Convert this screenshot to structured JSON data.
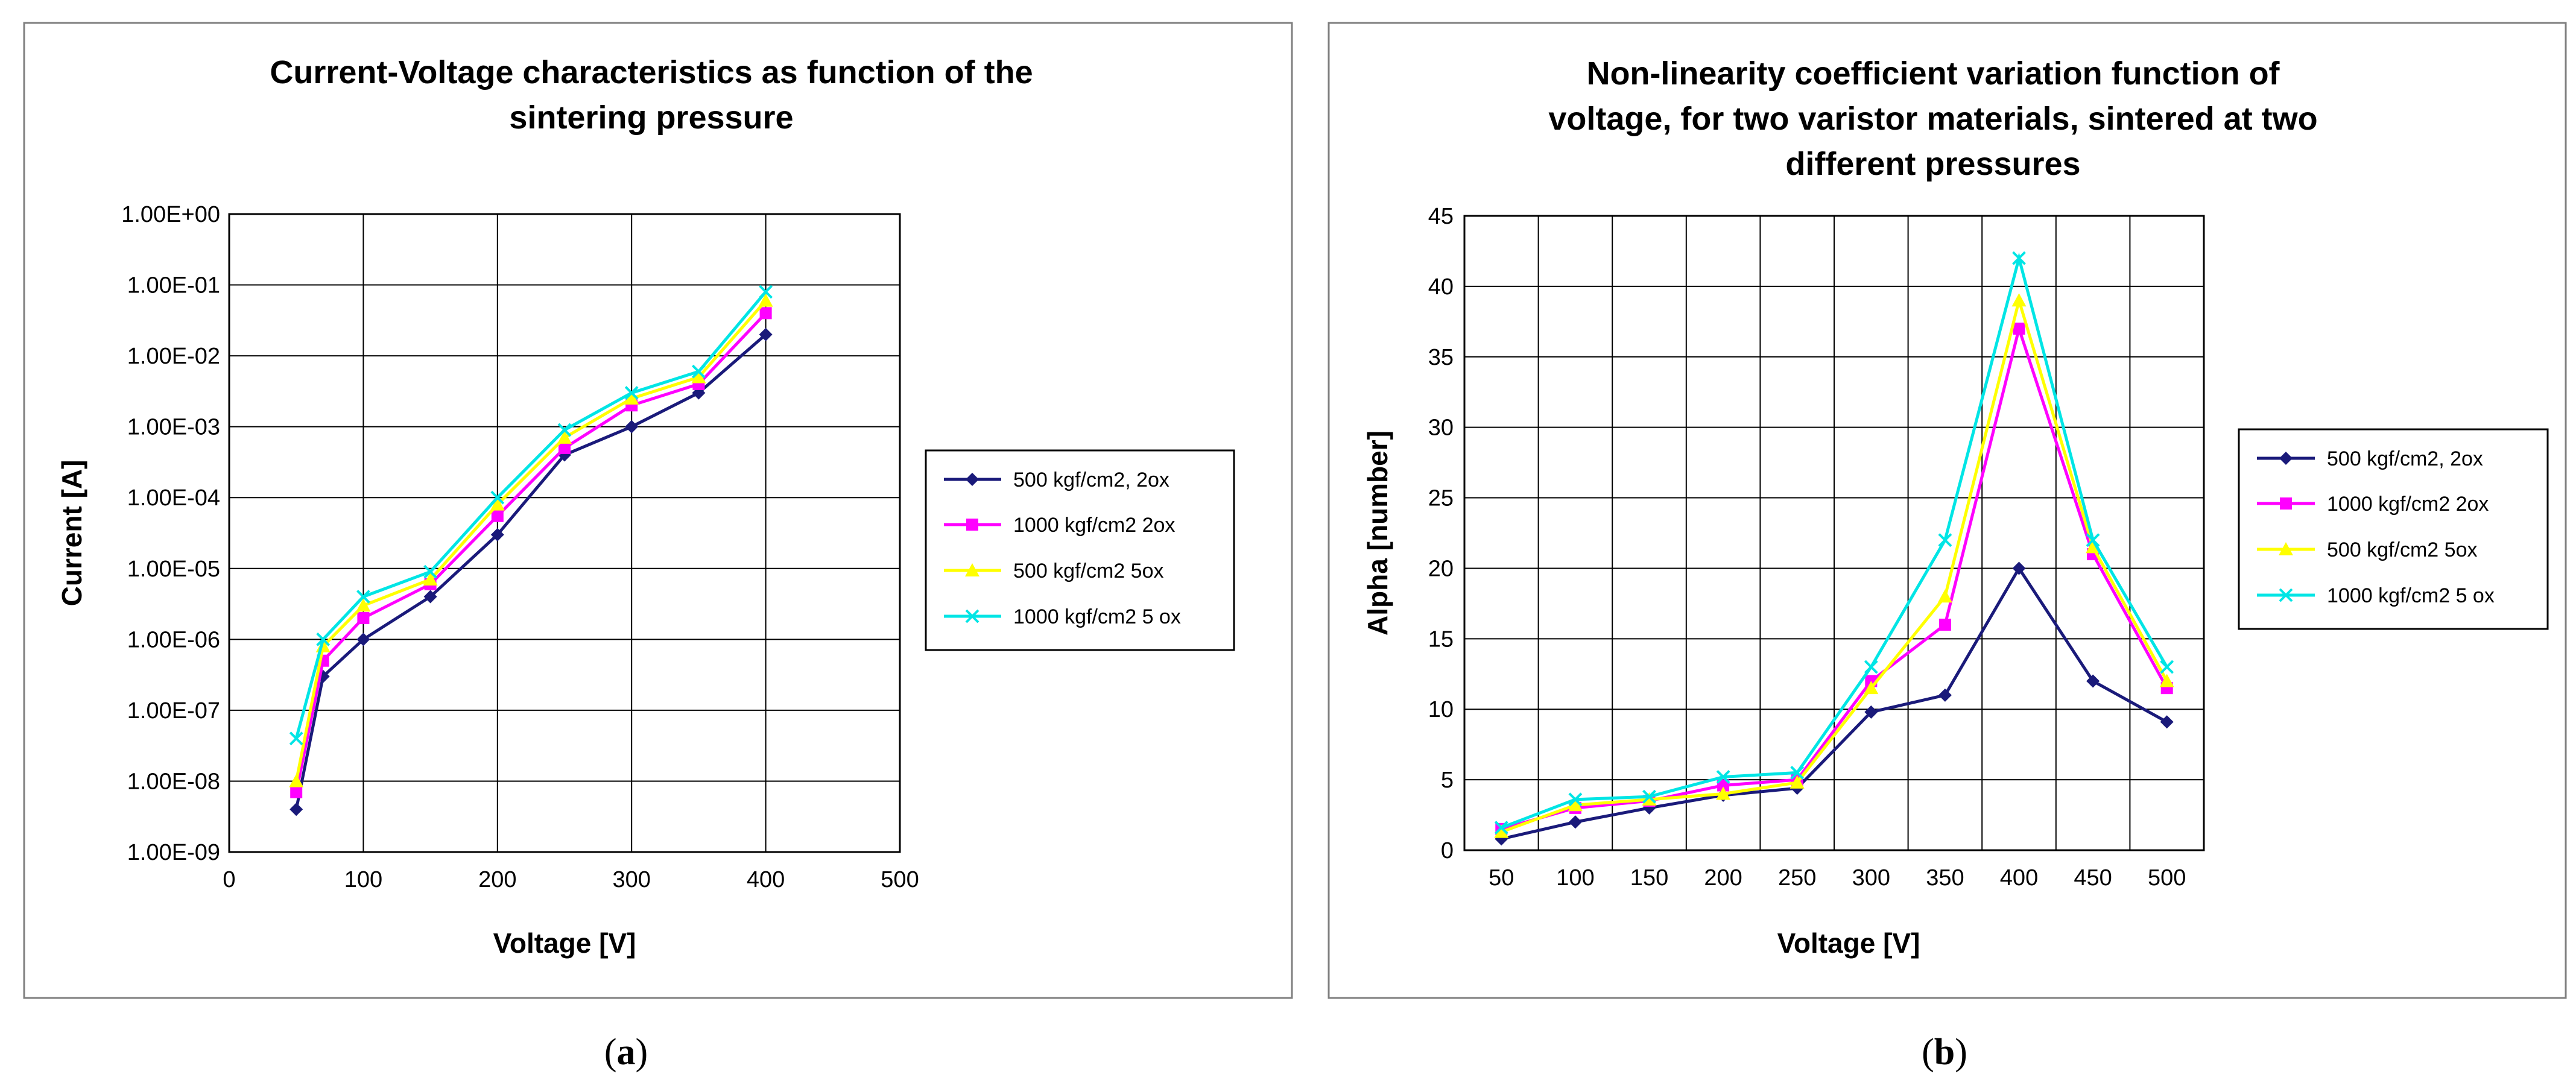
{
  "chart_data": [
    {
      "type": "line",
      "title_lines": [
        "Current-Voltage characteristics as function of the",
        "sintering pressure"
      ],
      "xlabel": "Voltage [V]",
      "ylabel": "Current [A]",
      "y_scale": "log",
      "xlim": [
        0,
        500
      ],
      "xticks": [
        0,
        100,
        200,
        300,
        400,
        500
      ],
      "xtick_labels": [
        "0",
        "100",
        "200",
        "300",
        "400",
        "500"
      ],
      "ylim": [
        1e-09,
        1
      ],
      "ytick_values": [
        1e-09,
        1e-08,
        1e-07,
        1e-06,
        1e-05,
        0.0001,
        0.001,
        0.01,
        0.1,
        1
      ],
      "ytick_labels": [
        "1.00E-09",
        "1.00E-08",
        "1.00E-07",
        "1.00E-06",
        "1.00E-05",
        "1.00E-04",
        "1.00E-03",
        "1.00E-02",
        "1.00E-01",
        "1.00E+00"
      ],
      "grid": true,
      "legend_position": "right",
      "series": [
        {
          "name": "500 kgf/cm2, 2ox",
          "color": "#1a1a7a",
          "marker": "diamond",
          "x": [
            50,
            70,
            100,
            150,
            200,
            250,
            300,
            350,
            400
          ],
          "values": [
            4e-09,
            3e-07,
            1e-06,
            4e-06,
            3e-05,
            0.0004,
            0.001,
            0.003,
            0.02
          ]
        },
        {
          "name": "1000 kgf/cm2 2ox",
          "color": "#ff00ff",
          "marker": "square",
          "x": [
            50,
            70,
            100,
            150,
            200,
            250,
            300,
            350,
            400
          ],
          "values": [
            7e-09,
            5e-07,
            2e-06,
            6e-06,
            5.5e-05,
            0.0005,
            0.002,
            0.004,
            0.04
          ]
        },
        {
          "name": "500 kgf/cm2 5ox",
          "color": "#ffff00",
          "marker": "triangle",
          "x": [
            50,
            70,
            100,
            150,
            200,
            250,
            300,
            350,
            400
          ],
          "values": [
            1e-08,
            8e-07,
            3e-06,
            7e-06,
            8e-05,
            0.0007,
            0.0025,
            0.005,
            0.06
          ]
        },
        {
          "name": "1000 kgf/cm2 5 ox",
          "color": "#00e5e5",
          "marker": "x",
          "x": [
            50,
            70,
            100,
            150,
            200,
            250,
            300,
            350,
            400
          ],
          "values": [
            4e-08,
            1e-06,
            4e-06,
            9e-06,
            0.0001,
            0.0009,
            0.003,
            0.006,
            0.08
          ]
        }
      ],
      "caption_open": "(",
      "caption_letter": "a",
      "caption_close": ")"
    },
    {
      "type": "line",
      "title_lines": [
        "Non-linearity coefficient variation function of",
        "voltage, for two varistor materials, sintered at two",
        "different pressures"
      ],
      "xlabel": "Voltage [V]",
      "ylabel": "Alpha [number]",
      "categories": [
        "50",
        "100",
        "150",
        "200",
        "250",
        "300",
        "350",
        "400",
        "450",
        "500"
      ],
      "ylim": [
        0,
        45
      ],
      "yticks": [
        0,
        5,
        10,
        15,
        20,
        25,
        30,
        35,
        40,
        45
      ],
      "ytick_labels": [
        "0",
        "5",
        "10",
        "15",
        "20",
        "25",
        "30",
        "35",
        "40",
        "45"
      ],
      "grid": true,
      "legend_position": "right",
      "series": [
        {
          "name": "500 kgf/cm2, 2ox",
          "color": "#1a1a7a",
          "marker": "diamond",
          "values": [
            0.8,
            2.0,
            3.0,
            3.9,
            4.4,
            9.8,
            11.0,
            20.0,
            12.0,
            9.1
          ]
        },
        {
          "name": "1000 kgf/cm2 2ox",
          "color": "#ff00ff",
          "marker": "square",
          "values": [
            1.5,
            3.0,
            3.5,
            4.6,
            5.0,
            12.0,
            16.0,
            37.0,
            21.0,
            11.5
          ]
        },
        {
          "name": "500 kgf/cm2 5ox",
          "color": "#ffff00",
          "marker": "triangle",
          "values": [
            1.3,
            3.2,
            3.6,
            4.0,
            4.8,
            11.5,
            18.0,
            39.0,
            21.5,
            12.0
          ]
        },
        {
          "name": "1000 kgf/cm2 5 ox",
          "color": "#00e5e5",
          "marker": "x",
          "values": [
            1.6,
            3.6,
            3.8,
            5.2,
            5.5,
            13.0,
            22.0,
            42.0,
            22.0,
            13.0
          ]
        }
      ],
      "caption_open": "(",
      "caption_letter": "b",
      "caption_close": ")"
    }
  ]
}
